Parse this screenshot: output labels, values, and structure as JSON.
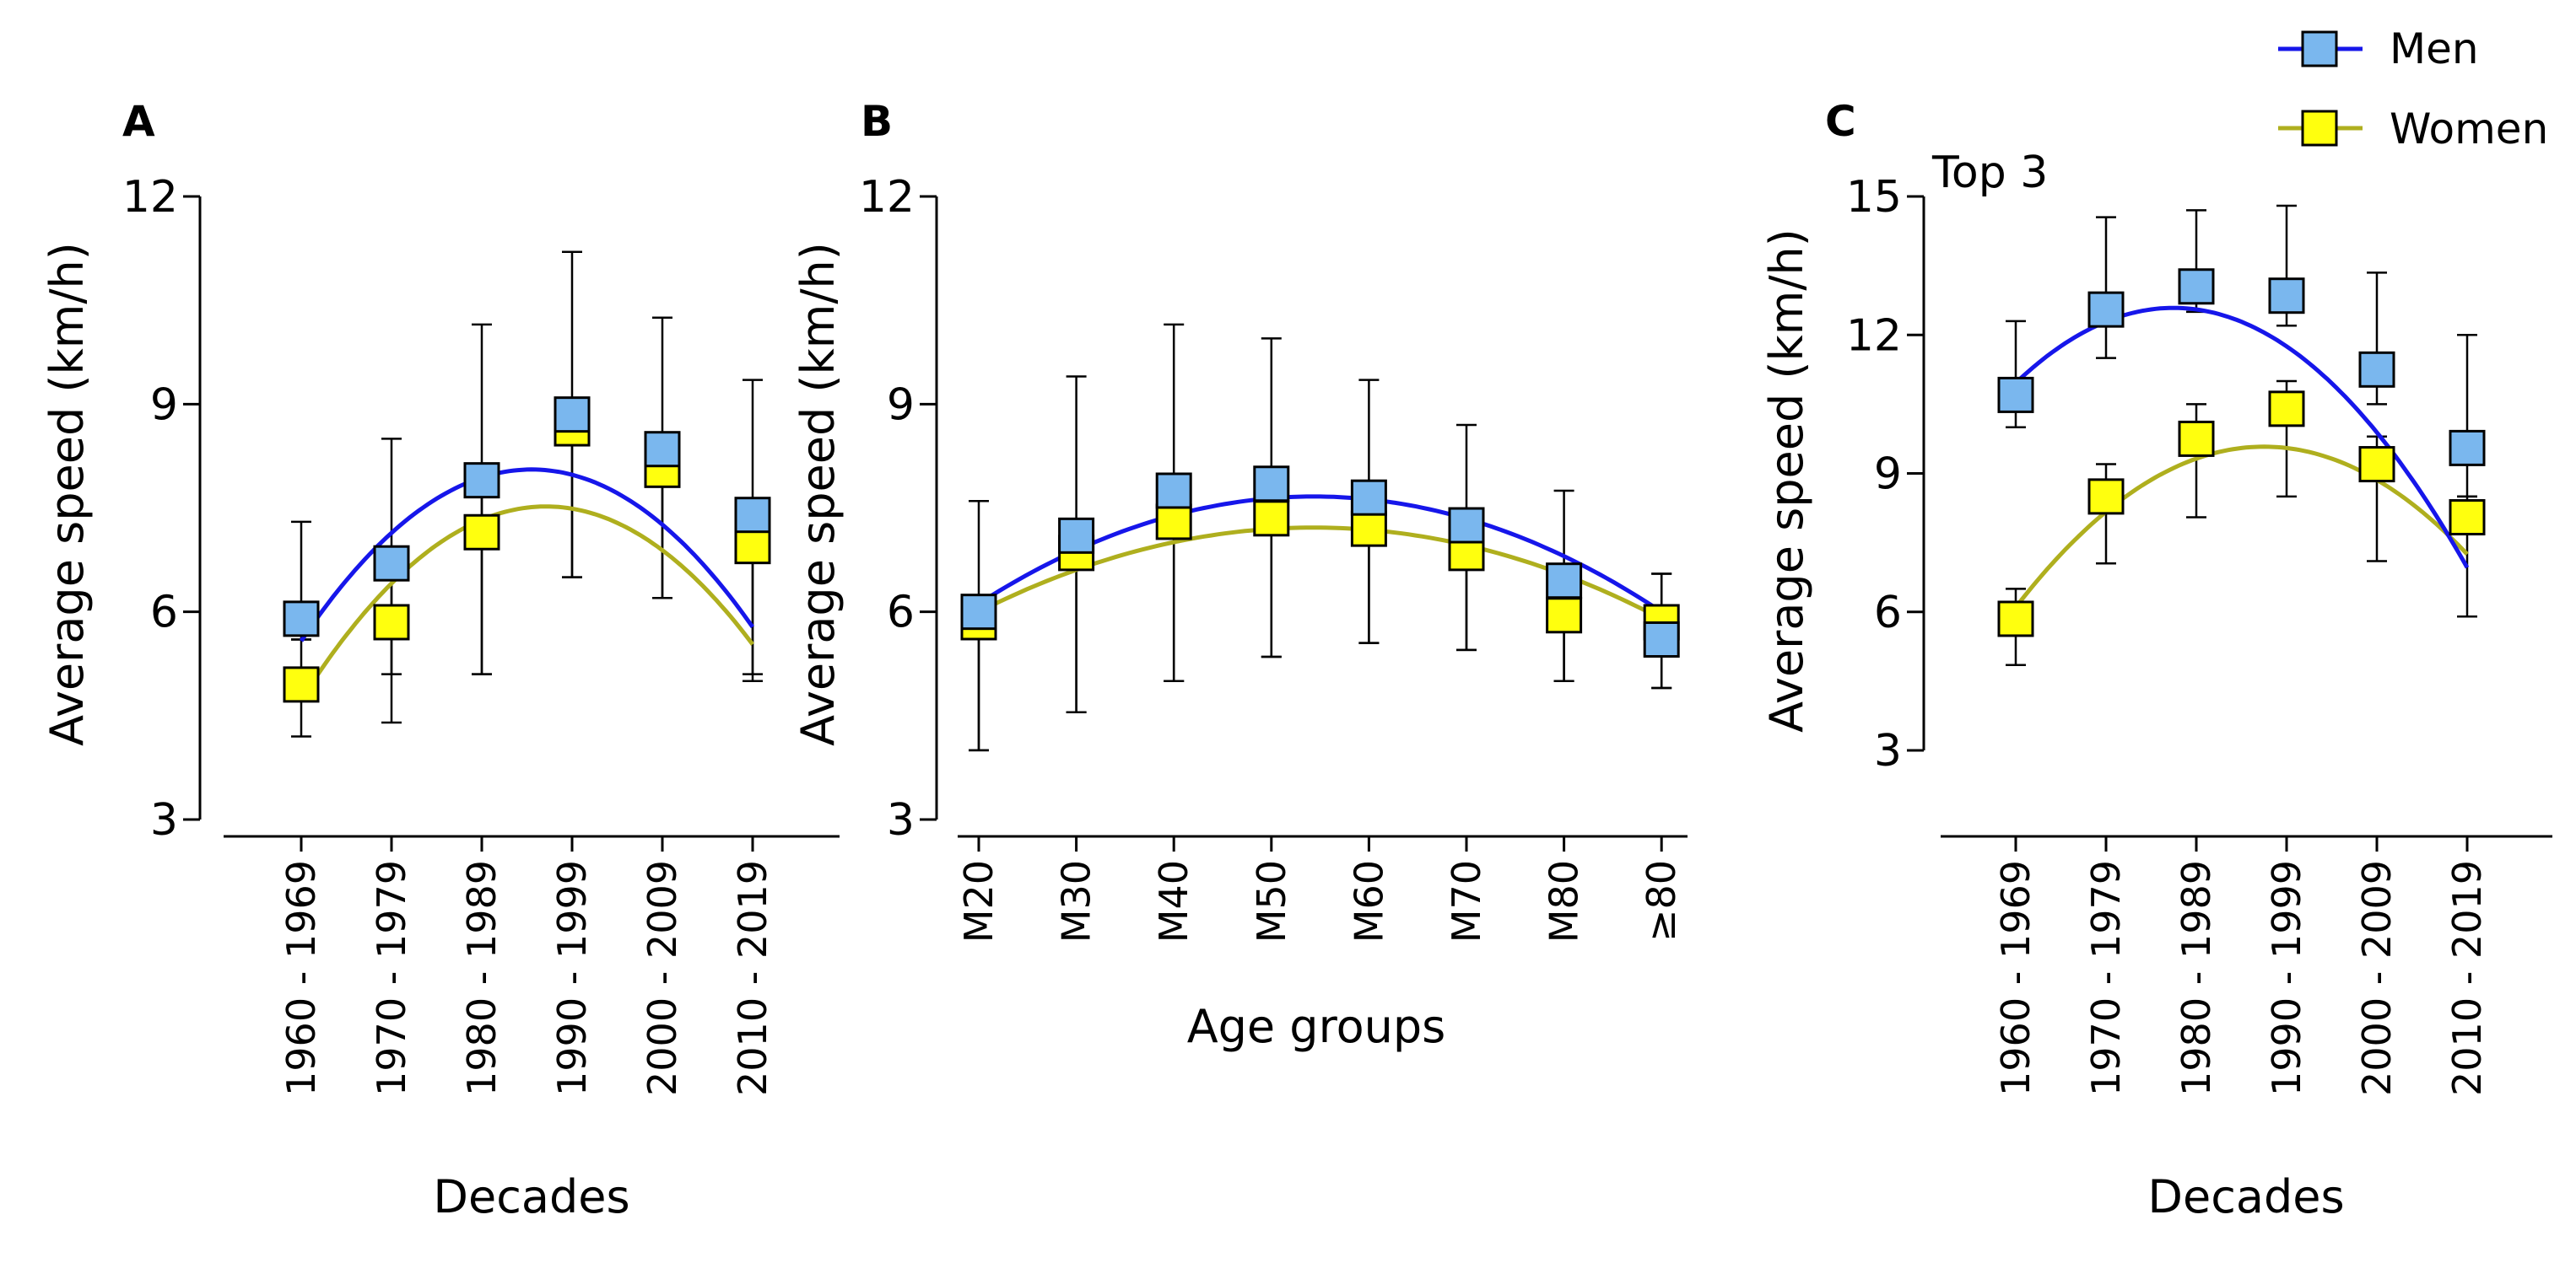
{
  "legend": {
    "position": "top-right",
    "entries": [
      {
        "label": "Men",
        "line_color": "#1616ea",
        "marker_color": "#7ab7ee"
      },
      {
        "label": "Women",
        "line_color": "#afaf1e",
        "marker_color": "#ffff0e"
      }
    ]
  },
  "chart_data": [
    {
      "panel": "A",
      "type": "line",
      "subtitle": "",
      "xlabel": "Decades",
      "ylabel": "Average speed (km/h)",
      "ylim": [
        3,
        12
      ],
      "yticks": [
        3,
        6,
        9,
        12
      ],
      "categories": [
        "1960 - 1969",
        "1970 - 1979",
        "1980 - 1989",
        "1990 - 1999",
        "2000 - 2009",
        "2010 - 2019"
      ],
      "series": [
        {
          "name": "Men",
          "values": [
            5.9,
            6.7,
            7.9,
            8.85,
            8.35,
            7.4
          ],
          "error_low": [
            5.6,
            5.1,
            5.1,
            6.5,
            6.2,
            5.1
          ],
          "error_high": [
            7.3,
            8.5,
            10.15,
            11.2,
            10.25,
            9.35
          ],
          "fit_coefficients": [
            5.58,
            1.94,
            -0.38
          ]
        },
        {
          "name": "Women",
          "values": [
            4.95,
            5.85,
            7.15,
            8.65,
            8.05,
            6.95
          ],
          "error_low": [
            4.2,
            4.4,
            5.1,
            6.5,
            6.2,
            5.0
          ],
          "error_high": [
            5.6,
            6.7,
            7.9,
            8.85,
            8.35,
            7.4
          ],
          "fit_coefficients": [
            4.73,
            2.06,
            -0.38
          ]
        }
      ]
    },
    {
      "panel": "B",
      "type": "line",
      "subtitle": "",
      "xlabel": "Age groups",
      "ylabel": "Average speed (km/h)",
      "ylim": [
        3,
        12
      ],
      "yticks": [
        3,
        6,
        9,
        12
      ],
      "categories": [
        "M20",
        "M30",
        "M40",
        "M50",
        "M60",
        "M70",
        "M80",
        "≥80"
      ],
      "series": [
        {
          "name": "Men",
          "values": [
            6.0,
            7.1,
            7.75,
            7.85,
            7.65,
            7.25,
            6.45,
            5.6
          ],
          "error_low": [
            4.0,
            4.55,
            5.0,
            5.35,
            5.55,
            5.45,
            5.0,
            4.9
          ],
          "error_high": [
            7.6,
            9.4,
            10.15,
            9.95,
            9.35,
            8.7,
            7.75,
            6.55
          ],
          "fit_coefficients": [
            6.12,
            0.9,
            -0.131
          ]
        },
        {
          "name": "Women",
          "values": [
            5.85,
            6.85,
            7.3,
            7.35,
            7.2,
            6.85,
            5.95,
            5.85
          ],
          "error_low": [
            4.0,
            4.55,
            5.0,
            5.35,
            5.55,
            5.45,
            5.0,
            4.9
          ],
          "error_high": [
            6.0,
            7.1,
            7.75,
            7.85,
            7.65,
            7.25,
            6.45,
            6.55
          ],
          "fit_coefficients": [
            6.0,
            0.71,
            -0.1035
          ]
        }
      ]
    },
    {
      "panel": "C",
      "type": "line",
      "subtitle": "Top 3",
      "xlabel": "Decades",
      "ylabel": "Average speed (km/h)",
      "ylim": [
        3,
        15
      ],
      "yticks": [
        3,
        6,
        9,
        12,
        15
      ],
      "categories": [
        "1960 - 1969",
        "1970 - 1979",
        "1980 - 1989",
        "1990 - 1999",
        "2000 - 2009",
        "2010 - 2019"
      ],
      "series": [
        {
          "name": "Men",
          "values": [
            10.7,
            12.55,
            13.05,
            12.85,
            11.25,
            9.55
          ],
          "error_low": [
            10.0,
            11.5,
            12.5,
            12.2,
            10.5,
            8.5
          ],
          "error_high": [
            12.3,
            14.55,
            14.7,
            14.8,
            13.35,
            12.0
          ],
          "fit_coefficients": [
            10.96,
            1.86,
            -0.532
          ]
        },
        {
          "name": "Women",
          "values": [
            5.85,
            8.5,
            9.75,
            10.4,
            9.2,
            8.05
          ],
          "error_low": [
            4.85,
            7.05,
            8.05,
            8.5,
            7.1,
            5.9
          ],
          "error_high": [
            6.5,
            9.2,
            10.5,
            11.0,
            9.8,
            8.5
          ],
          "fit_coefficients": [
            6.1,
            2.53,
            -0.46
          ]
        }
      ]
    }
  ]
}
